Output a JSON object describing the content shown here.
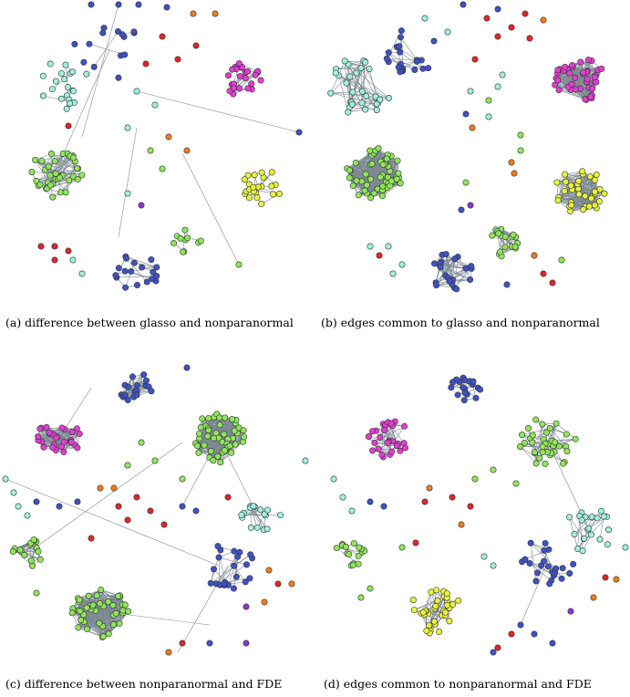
{
  "captions": {
    "a": "(a) difference between glasso and nonparanormal",
    "b": "(b) edges common to glasso and nonparanormal",
    "c": "(c) difference between nonparanormal and FDE",
    "d": "(d) edges common to nonparanormal and FDE"
  },
  "colors": {
    "cyan": "#9ff0dc",
    "blue": "#3f52c4",
    "magenta": "#e33dd3",
    "green": "#8fe65a",
    "yellow": "#e8f43a",
    "red": "#e0262a",
    "orange": "#f07c22",
    "purple": "#8a35d6",
    "edge": "#7e8a93",
    "node_stroke": "#333333"
  }
}
